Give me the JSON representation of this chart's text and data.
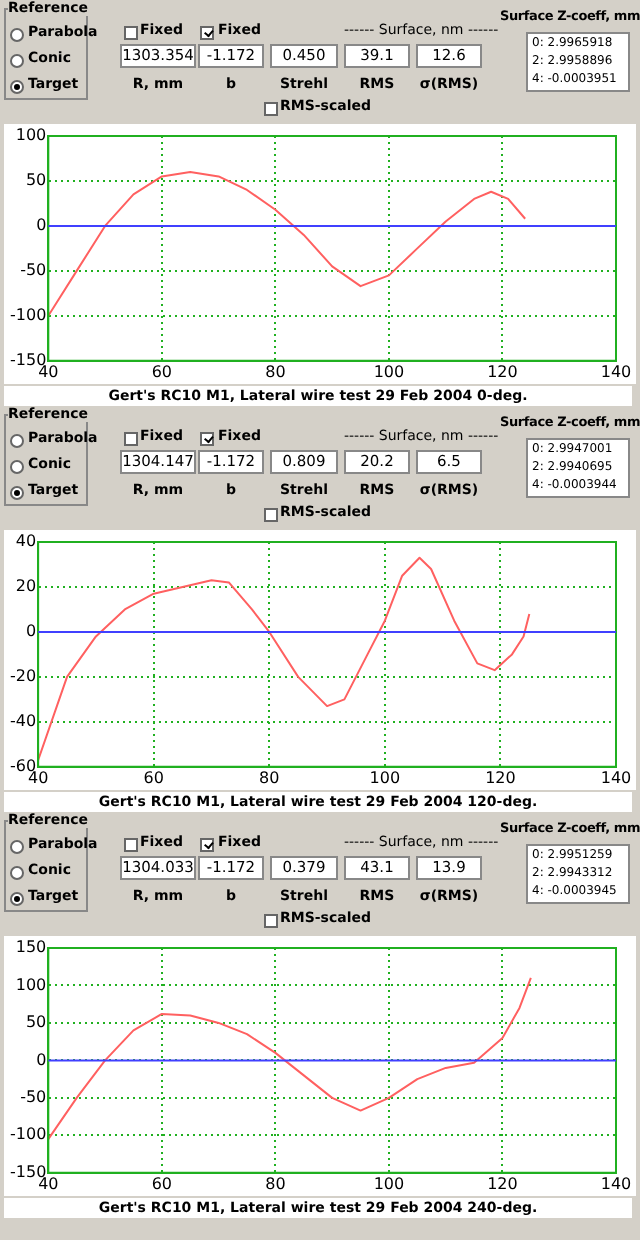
{
  "chart_data": [
    {
      "type": "other",
      "annotations": [
        "Reference",
        "Parabola",
        "Conic",
        "Target",
        "Fixed",
        "Fixed",
        "1303.354",
        "-1.172",
        "0.450",
        "39.1",
        "12.6",
        "R, mm",
        "b",
        "Strehl",
        "RMS",
        "σ(RMS)",
        "------ Surface, nm ------",
        "RMS-scaled",
        "Surface Z-coeff, mm",
        "0:  2.9965918",
        "2:  2.9958896",
        "4:  -0.0003951"
      ]
    },
    {
      "type": "line",
      "title": "Gert's RC10 M1, Lateral wire test 29 Feb 2004 0-deg.",
      "xlim": [
        40,
        140
      ],
      "xticks": [
        40,
        60,
        80,
        100,
        120,
        140
      ],
      "ylim": [
        -150,
        100
      ],
      "yticks": [
        -150,
        -100,
        -50,
        0,
        50,
        100
      ],
      "grid": true,
      "legend": false,
      "marker": "none",
      "ref_lines": [
        {
          "axis": "y",
          "value": 0,
          "color": "#4040ff"
        }
      ],
      "series": [
        {
          "color": "#ff6060",
          "x": [
            40,
            45,
            50,
            55,
            60,
            65,
            70,
            75,
            80,
            85,
            90,
            95,
            100,
            105,
            110,
            115,
            118,
            121,
            124
          ],
          "values": [
            -100,
            -50,
            0,
            35,
            55,
            60,
            55,
            40,
            18,
            -10,
            -45,
            -67,
            -55,
            -25,
            5,
            30,
            38,
            30,
            8
          ]
        }
      ]
    },
    {
      "type": "other",
      "annotations": [
        "Reference",
        "Parabola",
        "Conic",
        "Target",
        "Fixed",
        "Fixed",
        "1304.147",
        "-1.172",
        "0.809",
        "20.2",
        "6.5",
        "R, mm",
        "b",
        "Strehl",
        "RMS",
        "σ(RMS)",
        "------ Surface, nm ------",
        "RMS-scaled",
        "Surface Z-coeff, mm",
        "0:  2.9947001",
        "2:  2.9940695",
        "4:  -0.0003944"
      ]
    },
    {
      "type": "line",
      "title": "Gert's RC10 M1, Lateral wire test 29 Feb 2004 120-deg.",
      "xlim": [
        40,
        140
      ],
      "xticks": [
        40,
        60,
        80,
        100,
        120,
        140
      ],
      "ylim": [
        -60,
        40
      ],
      "yticks": [
        -60,
        -40,
        -20,
        0,
        20,
        40
      ],
      "grid": true,
      "legend": false,
      "marker": "none",
      "ref_lines": [
        {
          "axis": "y",
          "value": 0,
          "color": "#4040ff"
        }
      ],
      "series": [
        {
          "color": "#ff6060",
          "x": [
            40,
            45,
            50,
            55,
            60,
            65,
            70,
            73,
            77,
            80,
            85,
            90,
            93,
            97,
            100,
            103,
            106,
            108,
            112,
            116,
            119,
            122,
            124,
            125
          ],
          "values": [
            -57,
            -20,
            -2,
            10,
            17,
            20,
            23,
            22,
            10,
            0,
            -20,
            -33,
            -30,
            -10,
            5,
            25,
            33,
            28,
            5,
            -14,
            -17,
            -10,
            -2,
            8
          ]
        }
      ]
    },
    {
      "type": "other",
      "annotations": [
        "Reference",
        "Parabola",
        "Conic",
        "Target",
        "Fixed",
        "Fixed",
        "1304.033",
        "-1.172",
        "0.379",
        "43.1",
        "13.9",
        "R, mm",
        "b",
        "Strehl",
        "RMS",
        "σ(RMS)",
        "------ Surface, nm ------",
        "RMS-scaled",
        "Surface Z-coeff, mm",
        "0:  2.9951259",
        "2:  2.9943312",
        "4:  -0.0003945"
      ]
    },
    {
      "type": "line",
      "title": "Gert's RC10 M1, Lateral wire test 29 Feb 2004 240-deg.",
      "xlim": [
        40,
        140
      ],
      "xticks": [
        40,
        60,
        80,
        100,
        120,
        140
      ],
      "ylim": [
        -150,
        150
      ],
      "yticks": [
        -150,
        -100,
        -50,
        0,
        50,
        100,
        150
      ],
      "grid": true,
      "legend": false,
      "marker": "none",
      "ref_lines": [
        {
          "axis": "y",
          "value": 0,
          "color": "#4040ff"
        }
      ],
      "series": [
        {
          "color": "#ff6060",
          "x": [
            40,
            45,
            50,
            55,
            60,
            65,
            70,
            75,
            80,
            85,
            90,
            95,
            100,
            105,
            110,
            115,
            120,
            123,
            125
          ],
          "values": [
            -105,
            -50,
            0,
            40,
            62,
            60,
            50,
            35,
            10,
            -20,
            -50,
            -67,
            -50,
            -25,
            -10,
            -3,
            30,
            70,
            110
          ]
        }
      ]
    }
  ]
}
